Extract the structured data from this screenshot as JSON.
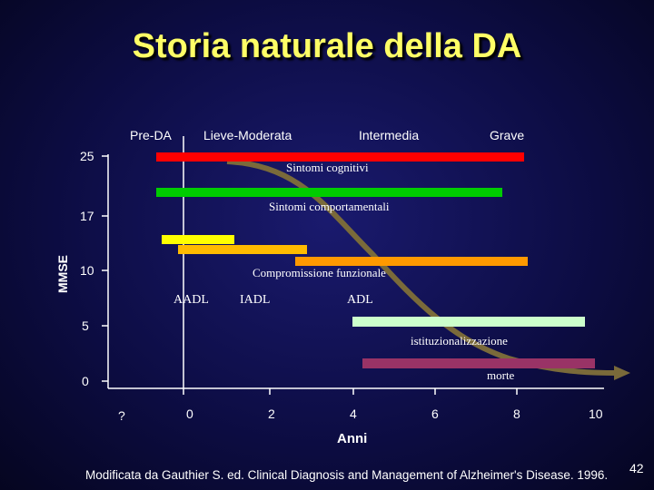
{
  "title": "Storia naturale della DA",
  "stages": [
    "Pre-DA",
    "Lieve-Moderata",
    "Intermedia",
    "Grave"
  ],
  "y_axis": {
    "label": "MMSE",
    "ticks": [
      "25",
      "17",
      "10",
      "5",
      "0"
    ]
  },
  "x_axis": {
    "label": "Anni",
    "ticks": [
      "?",
      "0",
      "2",
      "4",
      "6",
      "8",
      "10"
    ]
  },
  "bars": {
    "sintomi_cognitivi": "Sintomi cognitivi",
    "sintomi_comportamentali": "Sintomi comportamentali",
    "compromissione_funzionale": "Compromissione funzionale",
    "aadl": "AADL",
    "iadl": "IADL",
    "adl": "ADL",
    "istituzionalizzazione": "istituzionalizzazione",
    "morte": "morte"
  },
  "colors": {
    "title": "#ffff66",
    "cognitive": "#ff0000",
    "behavioral": "#00cc00",
    "aadl": "#ffff00",
    "iadl": "#ffbb00",
    "adl": "#ff9900",
    "institution": "#ccffcc",
    "death": "#993366",
    "curve": "#7a6a3a"
  },
  "footer": "Modificata  da Gauthier S. ed. Clinical Diagnosis and Management of Alzheimer's Disease. 1996.",
  "page_number": "42"
}
